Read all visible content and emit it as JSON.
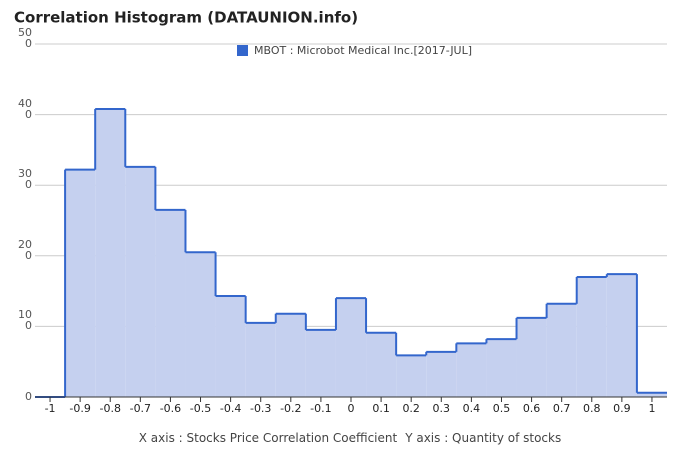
{
  "chart_data": {
    "type": "histogram",
    "title": "Correlation Histogram (DATAUNION.info)",
    "x_label": "X axis : Stocks Price Correlation Coefficient",
    "y_label": "Y axis : Quantity of stocks",
    "series": [
      {
        "name": "MBOT : Microbot Medical Inc.[2017-JUL]",
        "color": "#3366cc",
        "fill": "#c5d0ef",
        "bins": [
          -1.05,
          -0.95,
          -0.85,
          -0.75,
          -0.65,
          -0.55,
          -0.45,
          -0.35,
          -0.25,
          -0.15,
          -0.05,
          0.05,
          0.15,
          0.25,
          0.35,
          0.45,
          0.55,
          0.65,
          0.75,
          0.85,
          0.95,
          1.05
        ],
        "values": [
          0,
          322,
          408,
          326,
          265,
          205,
          143,
          105,
          118,
          95,
          140,
          91,
          59,
          64,
          76,
          82,
          112,
          132,
          170,
          174,
          6
        ]
      }
    ],
    "xlim": [
      -1.05,
      1.05
    ],
    "xticks": [
      -1,
      -0.9,
      -0.8,
      -0.7,
      -0.6,
      -0.5,
      -0.4,
      -0.3,
      -0.2,
      -0.1,
      0,
      0.1,
      0.2,
      0.3,
      0.4,
      0.5,
      0.6,
      0.7,
      0.8,
      0.9,
      1
    ],
    "ylim": [
      0,
      500
    ],
    "yticks": [
      0,
      100,
      200,
      300,
      400,
      500
    ],
    "grid": true,
    "legend": "top"
  }
}
